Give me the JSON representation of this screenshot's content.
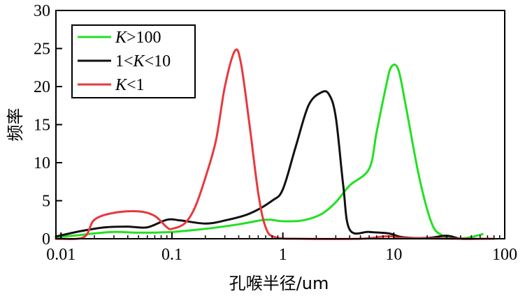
{
  "chart_data": {
    "type": "line",
    "xlabel": "孔喉半径/um",
    "ylabel": "频率",
    "xscale": "log",
    "xlim": [
      0.009,
      100
    ],
    "ylim": [
      0,
      30
    ],
    "grid": false,
    "legend_position": "top-left",
    "x_ticks": [
      {
        "value": 0.01,
        "label": "0.01"
      },
      {
        "value": 0.1,
        "label": "0.1"
      },
      {
        "value": 1,
        "label": "1"
      },
      {
        "value": 10,
        "label": "10"
      },
      {
        "value": 100,
        "label": "100"
      }
    ],
    "y_ticks": [
      {
        "value": 0,
        "label": "0"
      },
      {
        "value": 5,
        "label": "5"
      },
      {
        "value": 10,
        "label": "10"
      },
      {
        "value": 15,
        "label": "15"
      },
      {
        "value": 20,
        "label": "20"
      },
      {
        "value": 25,
        "label": "25"
      },
      {
        "value": 30,
        "label": "30"
      }
    ],
    "series": [
      {
        "name_parts": [
          {
            "text": "K",
            "italic": true
          },
          {
            "text": ">100",
            "italic": false
          }
        ],
        "color": "#22e022",
        "points": [
          [
            0.009,
            0.2
          ],
          [
            0.015,
            0.5
          ],
          [
            0.02,
            0.7
          ],
          [
            0.03,
            0.9
          ],
          [
            0.05,
            0.8
          ],
          [
            0.1,
            0.9
          ],
          [
            0.2,
            1.3
          ],
          [
            0.4,
            1.9
          ],
          [
            0.7,
            2.5
          ],
          [
            1.0,
            2.3
          ],
          [
            1.5,
            2.4
          ],
          [
            2.2,
            3.2
          ],
          [
            3.0,
            4.8
          ],
          [
            4.0,
            7.0
          ],
          [
            6.0,
            9.2
          ],
          [
            7.0,
            14.0
          ],
          [
            8.5,
            20.0
          ],
          [
            9.5,
            22.6
          ],
          [
            11.0,
            22.2
          ],
          [
            13.0,
            17.0
          ],
          [
            17.0,
            8.0
          ],
          [
            22.0,
            2.0
          ],
          [
            27.0,
            0.5
          ],
          [
            35.0,
            0.1
          ],
          [
            45.0,
            0.1
          ],
          [
            63.0,
            0.6
          ]
        ]
      },
      {
        "name_parts": [
          {
            "text": "1<",
            "italic": false
          },
          {
            "text": "K",
            "italic": true
          },
          {
            "text": "<10",
            "italic": false
          }
        ],
        "color": "#111111",
        "points": [
          [
            0.009,
            0.3
          ],
          [
            0.015,
            1.0
          ],
          [
            0.025,
            1.5
          ],
          [
            0.04,
            1.6
          ],
          [
            0.06,
            1.5
          ],
          [
            0.09,
            2.5
          ],
          [
            0.12,
            2.4
          ],
          [
            0.2,
            2.0
          ],
          [
            0.3,
            2.4
          ],
          [
            0.5,
            3.3
          ],
          [
            0.8,
            5.0
          ],
          [
            1.0,
            6.5
          ],
          [
            1.3,
            12.0
          ],
          [
            1.7,
            17.5
          ],
          [
            2.2,
            19.2
          ],
          [
            2.6,
            19.0
          ],
          [
            3.0,
            16.0
          ],
          [
            3.5,
            7.0
          ],
          [
            4.0,
            1.2
          ],
          [
            6.0,
            0.9
          ],
          [
            9.0,
            0.7
          ],
          [
            12.0,
            0.2
          ],
          [
            20.0,
            0.1
          ],
          [
            30.0,
            0.4
          ],
          [
            40.0,
            0.0
          ],
          [
            55.0,
            0.0
          ]
        ]
      },
      {
        "name_parts": [
          {
            "text": "K",
            "italic": true
          },
          {
            "text": "<1",
            "italic": false
          }
        ],
        "color": "#e8383d",
        "points": [
          [
            0.009,
            0.0
          ],
          [
            0.016,
            0.2
          ],
          [
            0.02,
            2.5
          ],
          [
            0.03,
            3.4
          ],
          [
            0.05,
            3.6
          ],
          [
            0.07,
            3.0
          ],
          [
            0.09,
            1.5
          ],
          [
            0.1,
            1.3
          ],
          [
            0.13,
            2.0
          ],
          [
            0.16,
            4.0
          ],
          [
            0.2,
            8.0
          ],
          [
            0.25,
            13.0
          ],
          [
            0.3,
            20.0
          ],
          [
            0.37,
            24.7
          ],
          [
            0.42,
            23.0
          ],
          [
            0.5,
            15.0
          ],
          [
            0.6,
            6.0
          ],
          [
            0.7,
            1.5
          ],
          [
            0.85,
            0.2
          ],
          [
            1.5,
            0.0
          ],
          [
            5.0,
            0.0
          ],
          [
            8.0,
            0.3
          ],
          [
            10.0,
            0.3
          ],
          [
            12.0,
            0.1
          ],
          [
            40.0,
            0.0
          ],
          [
            80.0,
            0.0
          ]
        ]
      }
    ]
  }
}
